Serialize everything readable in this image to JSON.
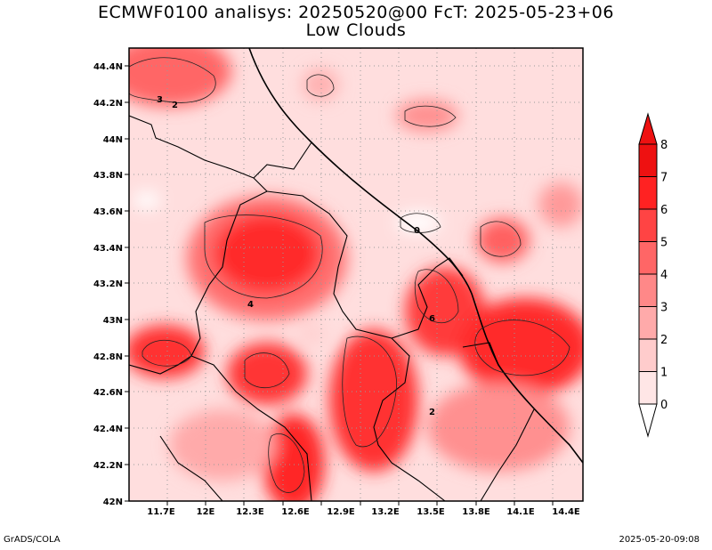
{
  "title": {
    "line1": "ECMWF0100 analisys: 20250520@00 FcT: 2025-05-23+06",
    "line2": "Low Clouds"
  },
  "map": {
    "x_ticks": [
      "11.7E",
      "12E",
      "12.3E",
      "12.6E",
      "12.9E",
      "13.2E",
      "13.5E",
      "13.8E",
      "14.1E",
      "14.4E"
    ],
    "y_ticks": [
      "42N",
      "42.2N",
      "42.4N",
      "42.6N",
      "42.8N",
      "43N",
      "43.2N",
      "43.4N",
      "43.6N",
      "43.8N",
      "44N",
      "44.2N",
      "44.4N"
    ],
    "contour_labels": [
      "3",
      "2",
      "0",
      "4",
      "6",
      "2"
    ]
  },
  "colorbar": {
    "levels": [
      "0",
      "1",
      "2",
      "3",
      "4",
      "5",
      "6",
      "7",
      "8"
    ],
    "colors": [
      "#ffe6e6",
      "#ffcccc",
      "#ffaaaa",
      "#ff8888",
      "#ff6666",
      "#ff4444",
      "#ff2222",
      "#ee1111"
    ]
  },
  "footer": {
    "left": "GrADS/COLA",
    "right": "2025-05-20-09:08"
  }
}
